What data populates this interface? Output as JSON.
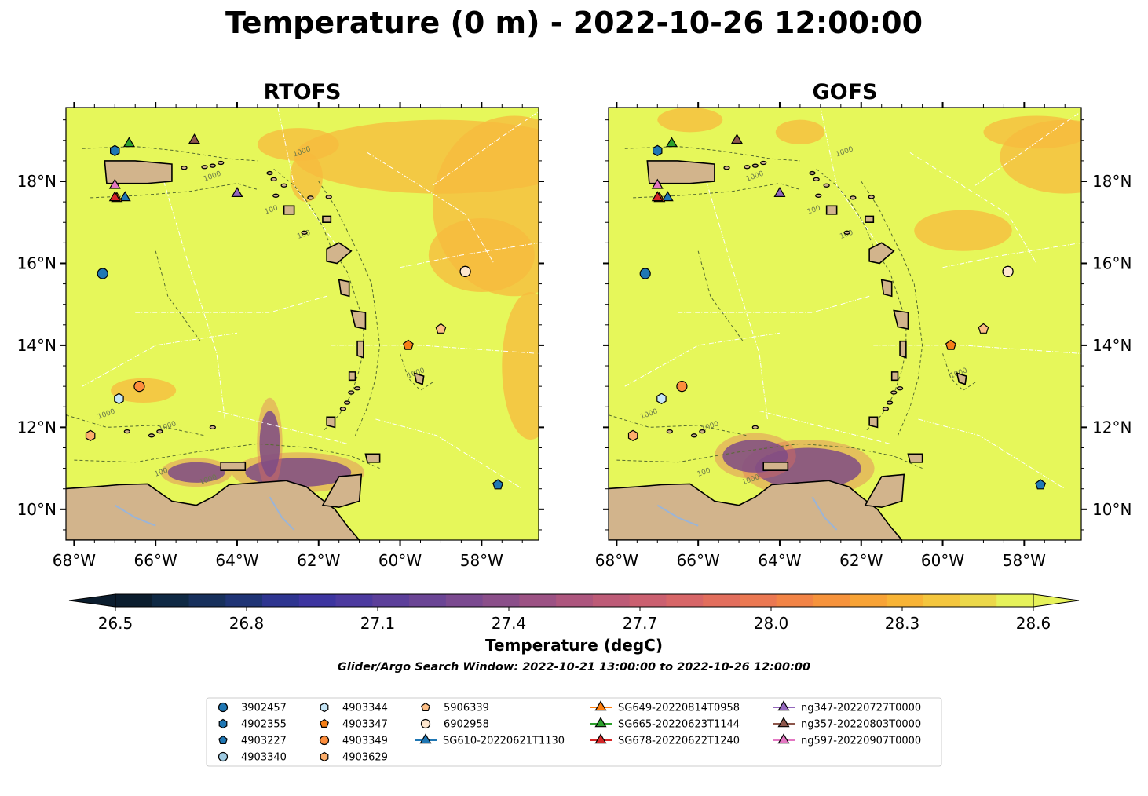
{
  "figure": {
    "title": "Temperature (0 m) - 2022-10-26 12:00:00",
    "search_window": "Glider/Argo Search Window: 2022-10-21 13:00:00 to 2022-10-26 12:00:00"
  },
  "panels": [
    {
      "title": "RTOFS"
    },
    {
      "title": "GOFS"
    }
  ],
  "axes": {
    "lon_ticks": [
      "68°W",
      "66°W",
      "64°W",
      "62°W",
      "60°W",
      "58°W"
    ],
    "lon_values": [
      -68,
      -66,
      -64,
      -62,
      -60,
      -58
    ],
    "lat_ticks": [
      "18°N",
      "16°N",
      "14°N",
      "12°N",
      "10°N"
    ],
    "lat_values": [
      18,
      16,
      14,
      12,
      10
    ],
    "lon_range": [
      -68.2,
      -56.6
    ],
    "lat_range": [
      9.25,
      19.8
    ]
  },
  "colorbar": {
    "label": "Temperature (degC)",
    "tick_labels": [
      "26.5",
      "26.8",
      "27.1",
      "27.4",
      "27.7",
      "28.0",
      "28.3",
      "28.6"
    ],
    "range": [
      26.5,
      28.6
    ],
    "colors": [
      "#0b1d2e",
      "#0f2944",
      "#17305c",
      "#1f3475",
      "#2e3590",
      "#3d35a0",
      "#4c3a9f",
      "#5c3f9a",
      "#6b4595",
      "#7b4a90",
      "#8b4f8a",
      "#9c5284",
      "#ad567e",
      "#bd5b77",
      "#cb6070",
      "#d76668",
      "#e26e5d",
      "#eb7852",
      "#f28446",
      "#f6933c",
      "#f8a336",
      "#f8b436",
      "#f4c63e",
      "#ecd84a",
      "#e6f25a"
    ]
  },
  "map_colors": {
    "land": "#d2b48c",
    "rivers": "#9ab4d8",
    "ocean_base": "#e6f75a",
    "warm_patch": "#f7b93e",
    "cold_patch": "#3d35a0"
  },
  "contour_labels": [
    "1000",
    "100",
    "1000",
    "100",
    "1000",
    "100",
    "1000",
    "1000",
    "1000"
  ],
  "markers": [
    {
      "id": "3902457",
      "marker": "circle",
      "color": "#1f77b4",
      "lon": -67.3,
      "lat": 15.75
    },
    {
      "id": "4902355",
      "marker": "hexagon",
      "color": "#1f77b4",
      "lon": -67.0,
      "lat": 18.75
    },
    {
      "id": "4903227",
      "marker": "pentagon",
      "color": "#1f77b4",
      "lon": -57.6,
      "lat": 10.6
    },
    {
      "id": "4903340",
      "marker": "circle",
      "color": "#9ecae1",
      "lon": -58.4,
      "lat": 15.8
    },
    {
      "id": "4903344",
      "marker": "hexagon",
      "color": "#c6e6f7",
      "lon": -66.9,
      "lat": 12.7
    },
    {
      "id": "4903347",
      "marker": "pentagon",
      "color": "#f57f17",
      "lon": -59.8,
      "lat": 14.0
    },
    {
      "id": "4903349",
      "marker": "circle",
      "color": "#fd8d3c",
      "lon": -66.4,
      "lat": 13.0
    },
    {
      "id": "4903629",
      "marker": "hexagon",
      "color": "#fdae6b",
      "lon": -67.6,
      "lat": 11.8
    },
    {
      "id": "5906339",
      "marker": "pentagon",
      "color": "#fdbe85",
      "lon": -59.0,
      "lat": 14.4
    },
    {
      "id": "6902958",
      "marker": "circle",
      "color": "#fee6ce",
      "lon": -58.4,
      "lat": 15.8
    },
    {
      "id": "SG610-20220621T1130",
      "marker": "triangle",
      "color": "#1f77b4",
      "lon": -66.75,
      "lat": 17.6
    },
    {
      "id": "SG649-20220814T0958",
      "marker": "triangle",
      "color": "#ff7f0e",
      "lon": -66.95,
      "lat": 17.58
    },
    {
      "id": "SG665-20220623T1144",
      "marker": "triangle",
      "color": "#2ca02c",
      "lon": -66.65,
      "lat": 18.92
    },
    {
      "id": "SG678-20220622T1240",
      "marker": "triangle",
      "color": "#d62728",
      "lon": -67.0,
      "lat": 17.6
    },
    {
      "id": "ng347-20220727T0000",
      "marker": "triangle",
      "color": "#9467bd",
      "lon": -64.0,
      "lat": 17.7
    },
    {
      "id": "ng357-20220803T0000",
      "marker": "triangle",
      "color": "#8c564b",
      "lon": -65.05,
      "lat": 19.0
    },
    {
      "id": "ng597-20220907T0000",
      "marker": "triangle",
      "color": "#e377c2",
      "lon": -67.0,
      "lat": 17.9
    }
  ],
  "legend": {
    "columns": [
      [
        "3902457",
        "4902355",
        "4903227",
        "4903340"
      ],
      [
        "4903344",
        "4903347",
        "4903349",
        "4903629"
      ],
      [
        "5906339",
        "6902958",
        "SG610-20220621T1130"
      ],
      [
        "SG649-20220814T0958",
        "SG665-20220623T1144",
        "SG678-20220622T1240"
      ],
      [
        "ng347-20220727T0000",
        "ng357-20220803T0000",
        "ng597-20220907T0000"
      ]
    ]
  }
}
